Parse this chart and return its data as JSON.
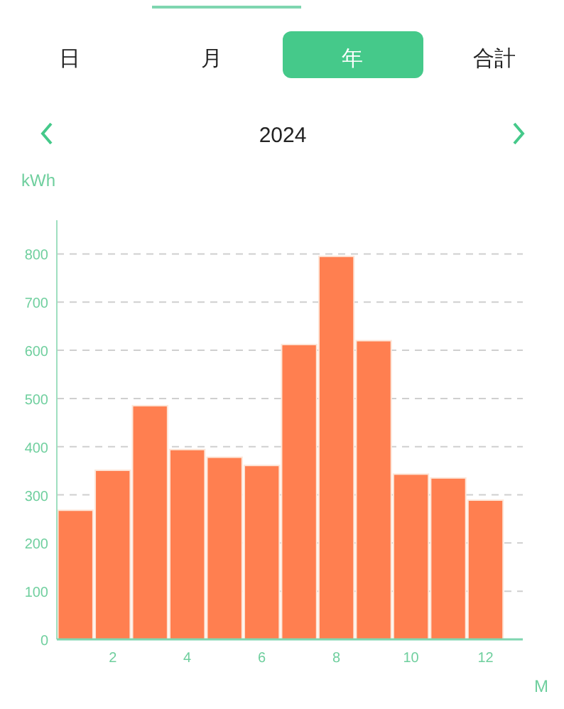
{
  "chart_data": {
    "type": "bar",
    "title": "2024",
    "xlabel": "M",
    "ylabel": "kWh",
    "annotations": [
      "日",
      "月",
      "年",
      "合計"
    ],
    "x": [
      1,
      2,
      3,
      4,
      5,
      6,
      7,
      8,
      9,
      10,
      11,
      12
    ],
    "values": [
      268,
      351,
      485,
      394,
      378,
      361,
      612,
      795,
      620,
      343,
      335,
      289
    ],
    "color": "#ff7f50",
    "xlim": [
      0.5,
      13
    ],
    "xticks": [
      2,
      4,
      6,
      8,
      10,
      12
    ],
    "ylim": [
      0,
      870
    ],
    "yticks": [
      0,
      100,
      200,
      300,
      400,
      500,
      600,
      700,
      800
    ],
    "grid": "y"
  }
}
